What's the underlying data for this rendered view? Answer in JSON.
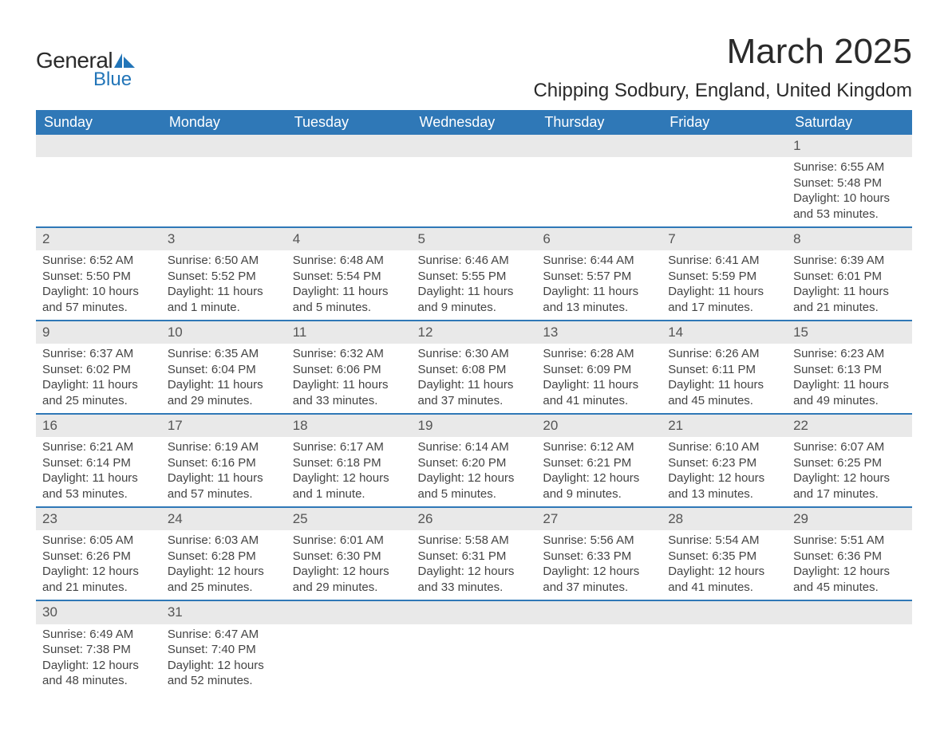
{
  "logo": {
    "word1": "General",
    "word2": "Blue",
    "icon_color": "#2275b8"
  },
  "title": "March 2025",
  "location": "Chipping Sodbury, England, United Kingdom",
  "colors": {
    "header_bg": "#2f78b7",
    "header_text": "#ffffff",
    "daynum_bg": "#e9e9e9",
    "row_divider": "#2f78b7",
    "text": "#444444"
  },
  "day_headers": [
    "Sunday",
    "Monday",
    "Tuesday",
    "Wednesday",
    "Thursday",
    "Friday",
    "Saturday"
  ],
  "weeks": [
    [
      null,
      null,
      null,
      null,
      null,
      null,
      {
        "n": "1",
        "sunrise": "6:55 AM",
        "sunset": "5:48 PM",
        "daylight": "10 hours and 53 minutes."
      }
    ],
    [
      {
        "n": "2",
        "sunrise": "6:52 AM",
        "sunset": "5:50 PM",
        "daylight": "10 hours and 57 minutes."
      },
      {
        "n": "3",
        "sunrise": "6:50 AM",
        "sunset": "5:52 PM",
        "daylight": "11 hours and 1 minute."
      },
      {
        "n": "4",
        "sunrise": "6:48 AM",
        "sunset": "5:54 PM",
        "daylight": "11 hours and 5 minutes."
      },
      {
        "n": "5",
        "sunrise": "6:46 AM",
        "sunset": "5:55 PM",
        "daylight": "11 hours and 9 minutes."
      },
      {
        "n": "6",
        "sunrise": "6:44 AM",
        "sunset": "5:57 PM",
        "daylight": "11 hours and 13 minutes."
      },
      {
        "n": "7",
        "sunrise": "6:41 AM",
        "sunset": "5:59 PM",
        "daylight": "11 hours and 17 minutes."
      },
      {
        "n": "8",
        "sunrise": "6:39 AM",
        "sunset": "6:01 PM",
        "daylight": "11 hours and 21 minutes."
      }
    ],
    [
      {
        "n": "9",
        "sunrise": "6:37 AM",
        "sunset": "6:02 PM",
        "daylight": "11 hours and 25 minutes."
      },
      {
        "n": "10",
        "sunrise": "6:35 AM",
        "sunset": "6:04 PM",
        "daylight": "11 hours and 29 minutes."
      },
      {
        "n": "11",
        "sunrise": "6:32 AM",
        "sunset": "6:06 PM",
        "daylight": "11 hours and 33 minutes."
      },
      {
        "n": "12",
        "sunrise": "6:30 AM",
        "sunset": "6:08 PM",
        "daylight": "11 hours and 37 minutes."
      },
      {
        "n": "13",
        "sunrise": "6:28 AM",
        "sunset": "6:09 PM",
        "daylight": "11 hours and 41 minutes."
      },
      {
        "n": "14",
        "sunrise": "6:26 AM",
        "sunset": "6:11 PM",
        "daylight": "11 hours and 45 minutes."
      },
      {
        "n": "15",
        "sunrise": "6:23 AM",
        "sunset": "6:13 PM",
        "daylight": "11 hours and 49 minutes."
      }
    ],
    [
      {
        "n": "16",
        "sunrise": "6:21 AM",
        "sunset": "6:14 PM",
        "daylight": "11 hours and 53 minutes."
      },
      {
        "n": "17",
        "sunrise": "6:19 AM",
        "sunset": "6:16 PM",
        "daylight": "11 hours and 57 minutes."
      },
      {
        "n": "18",
        "sunrise": "6:17 AM",
        "sunset": "6:18 PM",
        "daylight": "12 hours and 1 minute."
      },
      {
        "n": "19",
        "sunrise": "6:14 AM",
        "sunset": "6:20 PM",
        "daylight": "12 hours and 5 minutes."
      },
      {
        "n": "20",
        "sunrise": "6:12 AM",
        "sunset": "6:21 PM",
        "daylight": "12 hours and 9 minutes."
      },
      {
        "n": "21",
        "sunrise": "6:10 AM",
        "sunset": "6:23 PM",
        "daylight": "12 hours and 13 minutes."
      },
      {
        "n": "22",
        "sunrise": "6:07 AM",
        "sunset": "6:25 PM",
        "daylight": "12 hours and 17 minutes."
      }
    ],
    [
      {
        "n": "23",
        "sunrise": "6:05 AM",
        "sunset": "6:26 PM",
        "daylight": "12 hours and 21 minutes."
      },
      {
        "n": "24",
        "sunrise": "6:03 AM",
        "sunset": "6:28 PM",
        "daylight": "12 hours and 25 minutes."
      },
      {
        "n": "25",
        "sunrise": "6:01 AM",
        "sunset": "6:30 PM",
        "daylight": "12 hours and 29 minutes."
      },
      {
        "n": "26",
        "sunrise": "5:58 AM",
        "sunset": "6:31 PM",
        "daylight": "12 hours and 33 minutes."
      },
      {
        "n": "27",
        "sunrise": "5:56 AM",
        "sunset": "6:33 PM",
        "daylight": "12 hours and 37 minutes."
      },
      {
        "n": "28",
        "sunrise": "5:54 AM",
        "sunset": "6:35 PM",
        "daylight": "12 hours and 41 minutes."
      },
      {
        "n": "29",
        "sunrise": "5:51 AM",
        "sunset": "6:36 PM",
        "daylight": "12 hours and 45 minutes."
      }
    ],
    [
      {
        "n": "30",
        "sunrise": "6:49 AM",
        "sunset": "7:38 PM",
        "daylight": "12 hours and 48 minutes."
      },
      {
        "n": "31",
        "sunrise": "6:47 AM",
        "sunset": "7:40 PM",
        "daylight": "12 hours and 52 minutes."
      },
      null,
      null,
      null,
      null,
      null
    ]
  ],
  "labels": {
    "sunrise": "Sunrise: ",
    "sunset": "Sunset: ",
    "daylight": "Daylight: "
  }
}
